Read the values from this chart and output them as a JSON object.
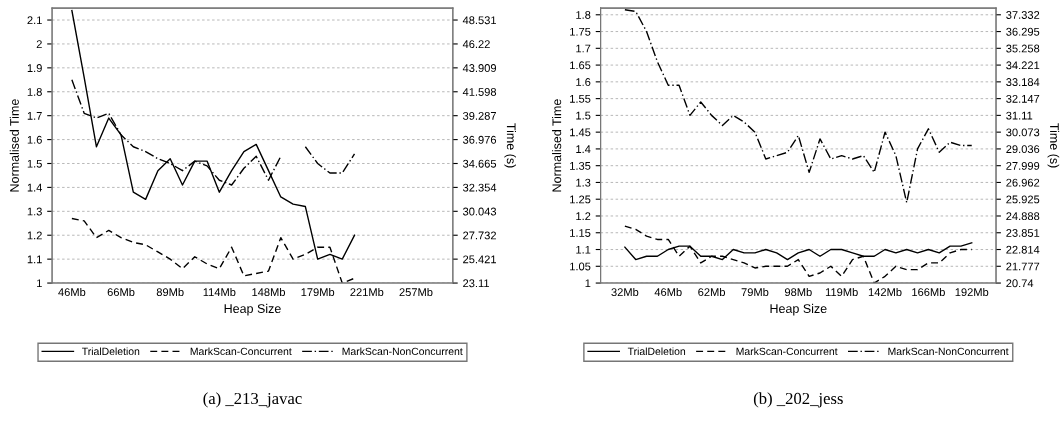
{
  "chart_data": [
    {
      "type": "line",
      "xlabel": "Heap Size",
      "ylabel": "Normalised Time",
      "y2label": "Time (s)",
      "categories": [
        "46Mb",
        null,
        null,
        null,
        "66Mb",
        null,
        null,
        null,
        "89Mb",
        null,
        null,
        null,
        "114Mb",
        null,
        null,
        null,
        "148Mb",
        null,
        null,
        null,
        "179Mb",
        null,
        null,
        null,
        "221Mb",
        null,
        null,
        null,
        "257Mb",
        null,
        null,
        null
      ],
      "series": [
        {
          "name": "TrialDeletion",
          "color": "#000000",
          "line_style": "solid",
          "values": [
            2.14,
            1.86,
            1.57,
            1.69,
            1.62,
            1.38,
            1.35,
            1.47,
            1.52,
            1.41,
            1.51,
            1.51,
            1.38,
            1.47,
            1.55,
            1.58,
            1.47,
            1.36,
            1.33,
            1.32,
            1.1,
            1.12,
            1.1,
            1.2,
            null,
            null,
            null,
            null,
            null,
            null,
            null,
            null
          ]
        },
        {
          "name": "MarkScan-Concurrent",
          "color": "#000000",
          "line_style": "dashed",
          "values": [
            1.27,
            1.26,
            1.19,
            1.22,
            1.19,
            1.17,
            1.16,
            1.13,
            1.1,
            1.06,
            1.11,
            1.08,
            1.06,
            1.15,
            1.03,
            1.04,
            1.05,
            1.19,
            1.1,
            1.12,
            1.15,
            1.15,
            1.0,
            1.02,
            null,
            null,
            null,
            null,
            null,
            null,
            null,
            null
          ]
        },
        {
          "name": "MarkScan-NonConcurrent",
          "color": "#000000",
          "line_style": "dashdot",
          "values": [
            1.85,
            1.71,
            1.69,
            1.71,
            1.62,
            1.57,
            1.55,
            1.52,
            1.5,
            1.47,
            1.51,
            1.49,
            1.43,
            1.41,
            1.48,
            1.53,
            1.43,
            1.53,
            null,
            1.57,
            1.5,
            1.46,
            1.46,
            1.54,
            null,
            null,
            null,
            null,
            null,
            null,
            null,
            null
          ]
        }
      ],
      "ylim": [
        1,
        2.15
      ],
      "yticks": [
        1,
        1.1,
        1.2,
        1.3,
        1.4,
        1.5,
        1.6,
        1.7,
        1.8,
        1.9,
        2,
        2.1
      ],
      "y2lim": [
        23.11,
        49.687
      ],
      "y2ticks": [
        23.11,
        25.421,
        27.732,
        30.043,
        32.354,
        34.665,
        36.976,
        39.287,
        41.598,
        43.909,
        46.22,
        48.531
      ],
      "grid": "y",
      "legend": "bottom",
      "marker": "none",
      "annotations": [
        "(a) _213_javac"
      ]
    },
    {
      "type": "line",
      "xlabel": "Heap Size",
      "ylabel": "Normalised Time",
      "y2label": "Time (s)",
      "categories": [
        "32Mb",
        null,
        null,
        null,
        "46Mb",
        null,
        null,
        null,
        "62Mb",
        null,
        null,
        null,
        "79Mb",
        null,
        null,
        null,
        "98Mb",
        null,
        null,
        null,
        "119Mb",
        null,
        null,
        null,
        "142Mb",
        null,
        null,
        null,
        "166Mb",
        null,
        null,
        null,
        "192Mb"
      ],
      "series": [
        {
          "name": "TrialDeletion",
          "color": "#000000",
          "line_style": "solid",
          "values": [
            1.107,
            1.07,
            1.08,
            1.08,
            1.1,
            1.11,
            1.11,
            1.08,
            1.08,
            1.07,
            1.1,
            1.09,
            1.09,
            1.1,
            1.09,
            1.07,
            1.09,
            1.1,
            1.08,
            1.1,
            1.1,
            1.09,
            1.08,
            1.08,
            1.1,
            1.09,
            1.1,
            1.09,
            1.1,
            1.09,
            1.11,
            1.11,
            1.12
          ]
        },
        {
          "name": "MarkScan-Concurrent",
          "color": "#000000",
          "line_style": "dashed",
          "values": [
            1.17,
            1.16,
            1.14,
            1.13,
            1.13,
            1.08,
            1.11,
            1.06,
            1.08,
            1.08,
            1.07,
            1.06,
            1.045,
            1.05,
            1.05,
            1.05,
            1.07,
            1.02,
            1.03,
            1.05,
            1.02,
            1.07,
            1.08,
            1.0,
            1.02,
            1.05,
            1.04,
            1.04,
            1.06,
            1.06,
            1.09,
            1.1,
            1.1
          ]
        },
        {
          "name": "MarkScan-NonConcurrent",
          "color": "#000000",
          "line_style": "dashdot",
          "values": [
            1.815,
            1.81,
            1.75,
            1.66,
            1.59,
            1.59,
            1.5,
            1.54,
            1.5,
            1.47,
            1.5,
            1.48,
            1.45,
            1.37,
            1.38,
            1.39,
            1.44,
            1.33,
            1.43,
            1.37,
            1.38,
            1.37,
            1.38,
            1.33,
            1.45,
            1.38,
            1.24,
            1.4,
            1.46,
            1.39,
            1.42,
            1.41,
            1.41
          ]
        }
      ],
      "ylim": [
        1,
        1.82
      ],
      "yticks": [
        1,
        1.05,
        1.1,
        1.15,
        1.2,
        1.25,
        1.3,
        1.35,
        1.4,
        1.45,
        1.5,
        1.55,
        1.6,
        1.65,
        1.7,
        1.75,
        1.8
      ],
      "y2lim": [
        20.74,
        37.747
      ],
      "y2ticks": [
        20.74,
        21.777,
        22.814,
        23.851,
        24.888,
        25.925,
        26.962,
        27.999,
        29.036,
        30.073,
        31.11,
        32.147,
        33.184,
        34.221,
        35.258,
        36.295,
        37.332
      ],
      "grid": "y",
      "legend": "bottom",
      "marker": "none",
      "annotations": [
        "(b) _202_jess"
      ]
    }
  ]
}
